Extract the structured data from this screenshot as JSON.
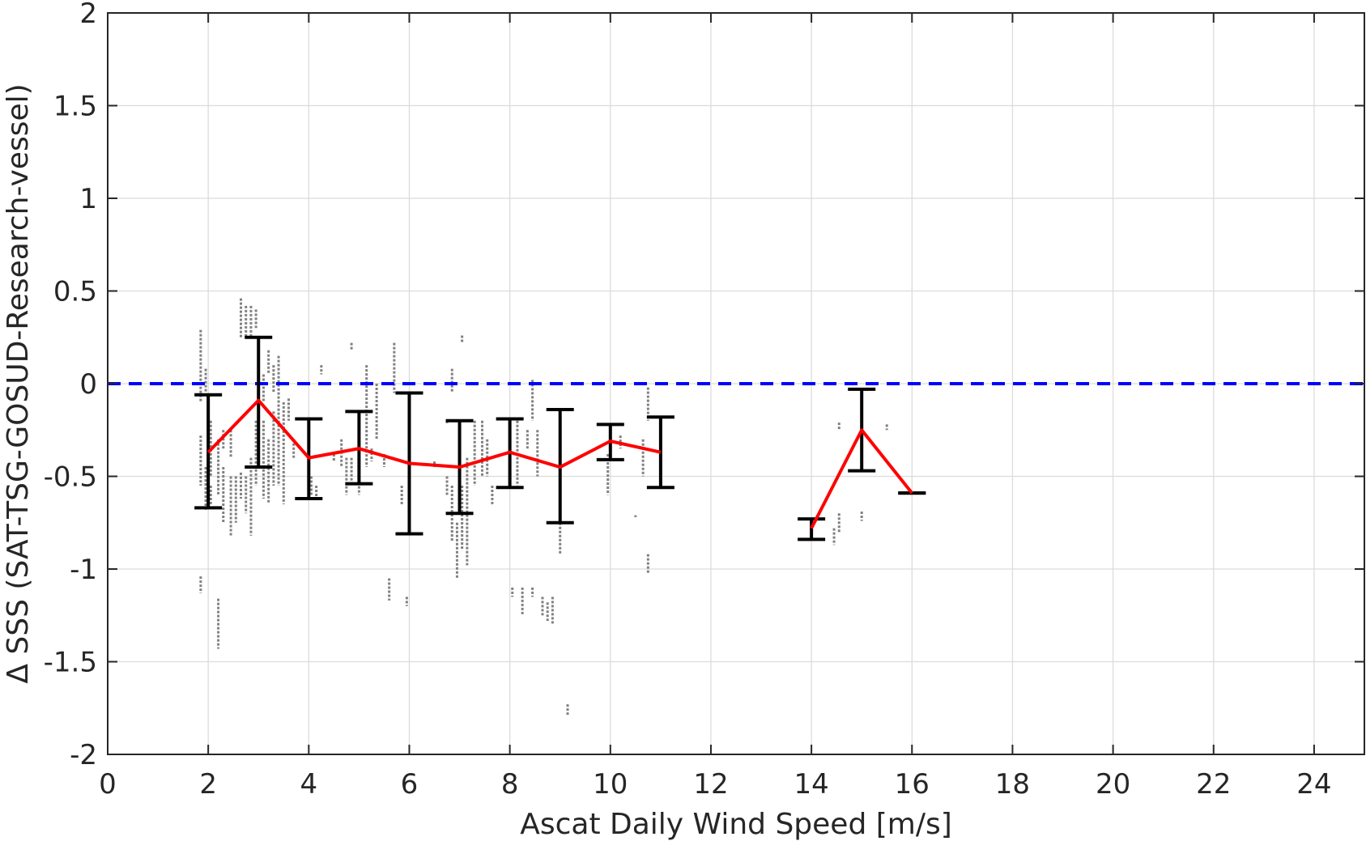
{
  "chart_data": {
    "type": "scatter",
    "title": "",
    "xlabel": "Ascat Daily Wind Speed [m/s]",
    "ylabel": "Δ SSS (SAT-TSG-GOSUD-Research-vessel)",
    "xlim": [
      0,
      25
    ],
    "ylim": [
      -2,
      2
    ],
    "xticks": [
      "0",
      "2",
      "4",
      "6",
      "8",
      "10",
      "12",
      "14",
      "16",
      "18",
      "20",
      "22",
      "24"
    ],
    "yticks": [
      "-2",
      "-1.5",
      "-1",
      "-0.5",
      "0",
      "0.5",
      "1",
      "1.5",
      "2"
    ],
    "grid": true,
    "reference_line": {
      "y": 0,
      "style": "dashed",
      "color": "#0000ff"
    },
    "mean_series": {
      "color": "#ff0000",
      "segments": [
        {
          "x": [
            2,
            3,
            4,
            5,
            6,
            7,
            8,
            9,
            10,
            11
          ],
          "y": [
            -0.37,
            -0.09,
            -0.4,
            -0.35,
            -0.43,
            -0.45,
            -0.37,
            -0.45,
            -0.31,
            -0.37
          ]
        },
        {
          "x": [
            14,
            15,
            16
          ],
          "y": [
            -0.78,
            -0.25,
            -0.59
          ]
        }
      ]
    },
    "error_bars": [
      {
        "x": 2,
        "low": -0.67,
        "high": -0.06
      },
      {
        "x": 3,
        "low": -0.45,
        "high": 0.25
      },
      {
        "x": 4,
        "low": -0.62,
        "high": -0.19
      },
      {
        "x": 5,
        "low": -0.54,
        "high": -0.15
      },
      {
        "x": 6,
        "low": -0.81,
        "high": -0.05
      },
      {
        "x": 7,
        "low": -0.7,
        "high": -0.2
      },
      {
        "x": 8,
        "low": -0.56,
        "high": -0.19
      },
      {
        "x": 9,
        "low": -0.75,
        "high": -0.14
      },
      {
        "x": 10,
        "low": -0.41,
        "high": -0.22
      },
      {
        "x": 11,
        "low": -0.56,
        "high": -0.18
      },
      {
        "x": 14,
        "low": -0.84,
        "high": -0.73
      },
      {
        "x": 15,
        "low": -0.47,
        "high": -0.03
      },
      {
        "x": 16,
        "low": -0.59,
        "high": -0.59
      }
    ],
    "scatter_color": "#808080",
    "scatter_columns": [
      {
        "x": 1.85,
        "y": [
          [
            -0.1,
            0.29
          ],
          [
            -0.55,
            -0.28
          ],
          [
            -1.13,
            -1.04
          ]
        ]
      },
      {
        "x": 1.95,
        "y": [
          [
            -0.68,
            -0.45
          ],
          [
            -0.05,
            0.08
          ]
        ]
      },
      {
        "x": 2.05,
        "y": [
          [
            -0.5,
            -0.2
          ],
          [
            -0.65,
            -0.55
          ]
        ]
      },
      {
        "x": 2.2,
        "y": [
          [
            -0.6,
            -0.3
          ],
          [
            -1.43,
            -1.16
          ]
        ]
      },
      {
        "x": 2.3,
        "y": [
          [
            -0.75,
            -0.45
          ],
          [
            -0.35,
            -0.25
          ]
        ]
      },
      {
        "x": 2.45,
        "y": [
          [
            -0.82,
            -0.5
          ],
          [
            -0.4,
            -0.25
          ]
        ]
      },
      {
        "x": 2.55,
        "y": [
          [
            -0.75,
            -0.5
          ]
        ]
      },
      {
        "x": 2.65,
        "y": [
          [
            0.25,
            0.46
          ],
          [
            -0.62,
            -0.48
          ]
        ]
      },
      {
        "x": 2.75,
        "y": [
          [
            0.25,
            0.42
          ],
          [
            -0.7,
            -0.5
          ]
        ]
      },
      {
        "x": 2.85,
        "y": [
          [
            0.25,
            0.42
          ],
          [
            -0.82,
            -0.4
          ]
        ]
      },
      {
        "x": 2.95,
        "y": [
          [
            0.3,
            0.4
          ],
          [
            -0.55,
            -0.2
          ]
        ]
      },
      {
        "x": 3.1,
        "y": [
          [
            -0.62,
            -0.2
          ],
          [
            -0.1,
            0.05
          ]
        ]
      },
      {
        "x": 3.2,
        "y": [
          [
            -0.65,
            -0.3
          ],
          [
            0.05,
            0.18
          ]
        ]
      },
      {
        "x": 3.3,
        "y": [
          [
            -0.55,
            -0.15
          ],
          [
            -0.05,
            0.1
          ]
        ]
      },
      {
        "x": 3.4,
        "y": [
          [
            -0.55,
            0.15
          ]
        ]
      },
      {
        "x": 3.5,
        "y": [
          [
            -0.65,
            -0.1
          ]
        ]
      },
      {
        "x": 3.6,
        "y": [
          [
            -0.2,
            -0.08
          ]
        ]
      },
      {
        "x": 3.7,
        "y": [
          [
            -0.4,
            -0.3
          ]
        ]
      },
      {
        "x": 4.05,
        "y": [
          [
            -0.6,
            -0.5
          ]
        ]
      },
      {
        "x": 4.15,
        "y": [
          [
            -0.62,
            -0.55
          ]
        ]
      },
      {
        "x": 4.25,
        "y": [
          [
            0.05,
            0.1
          ]
        ]
      },
      {
        "x": 4.5,
        "y": [
          [
            -0.42,
            -0.38
          ]
        ]
      },
      {
        "x": 4.65,
        "y": [
          [
            -0.45,
            -0.3
          ]
        ]
      },
      {
        "x": 4.75,
        "y": [
          [
            -0.6,
            -0.4
          ]
        ]
      },
      {
        "x": 4.85,
        "y": [
          [
            -0.55,
            -0.4
          ],
          [
            0.18,
            0.22
          ]
        ]
      },
      {
        "x": 5.0,
        "y": [
          [
            -0.6,
            -0.4
          ]
        ]
      },
      {
        "x": 5.15,
        "y": [
          [
            -0.45,
            0.1
          ]
        ]
      },
      {
        "x": 5.25,
        "y": [
          [
            -0.42,
            -0.35
          ]
        ]
      },
      {
        "x": 5.35,
        "y": [
          [
            -0.3,
            0.0
          ]
        ]
      },
      {
        "x": 5.5,
        "y": [
          [
            -0.45,
            -0.38
          ]
        ]
      },
      {
        "x": 5.6,
        "y": [
          [
            -1.17,
            -1.05
          ]
        ]
      },
      {
        "x": 5.7,
        "y": [
          [
            -0.05,
            0.22
          ]
        ]
      },
      {
        "x": 5.85,
        "y": [
          [
            -0.65,
            -0.55
          ]
        ]
      },
      {
        "x": 5.95,
        "y": [
          [
            -1.2,
            -1.15
          ]
        ]
      },
      {
        "x": 6.5,
        "y": [
          [
            -0.45,
            -0.42
          ]
        ]
      },
      {
        "x": 6.75,
        "y": [
          [
            -0.6,
            -0.5
          ],
          [
            -0.22,
            -0.2
          ]
        ]
      },
      {
        "x": 6.85,
        "y": [
          [
            -0.85,
            -0.55
          ],
          [
            -0.05,
            0.08
          ]
        ]
      },
      {
        "x": 6.95,
        "y": [
          [
            -1.05,
            -0.75
          ]
        ]
      },
      {
        "x": 7.05,
        "y": [
          [
            -0.9,
            -0.55
          ],
          [
            0.22,
            0.26
          ]
        ]
      },
      {
        "x": 7.15,
        "y": [
          [
            -0.98,
            -0.4
          ]
        ]
      },
      {
        "x": 7.3,
        "y": [
          [
            -0.55,
            -0.2
          ]
        ]
      },
      {
        "x": 7.45,
        "y": [
          [
            -0.5,
            -0.2
          ]
        ]
      },
      {
        "x": 7.55,
        "y": [
          [
            -0.5,
            -0.3
          ]
        ]
      },
      {
        "x": 7.65,
        "y": [
          [
            -0.65,
            -0.55
          ]
        ]
      },
      {
        "x": 8.05,
        "y": [
          [
            -1.15,
            -1.1
          ]
        ]
      },
      {
        "x": 8.15,
        "y": [
          [
            -0.55,
            -0.2
          ]
        ]
      },
      {
        "x": 8.25,
        "y": [
          [
            -1.25,
            -1.1
          ]
        ]
      },
      {
        "x": 8.35,
        "y": [
          [
            -0.35,
            -0.25
          ]
        ]
      },
      {
        "x": 8.45,
        "y": [
          [
            -1.15,
            -1.1
          ],
          [
            -0.2,
            0.02
          ]
        ]
      },
      {
        "x": 8.55,
        "y": [
          [
            -0.5,
            -0.25
          ]
        ]
      },
      {
        "x": 8.65,
        "y": [
          [
            -1.25,
            -1.15
          ]
        ]
      },
      {
        "x": 8.75,
        "y": [
          [
            -1.28,
            -1.18
          ]
        ]
      },
      {
        "x": 8.85,
        "y": [
          [
            -1.3,
            -1.15
          ]
        ]
      },
      {
        "x": 9.0,
        "y": [
          [
            -0.92,
            -0.75
          ]
        ]
      },
      {
        "x": 9.15,
        "y": [
          [
            -1.79,
            -1.73
          ]
        ]
      },
      {
        "x": 9.95,
        "y": [
          [
            -0.6,
            -0.38
          ]
        ]
      },
      {
        "x": 10.2,
        "y": [
          [
            -0.35,
            -0.28
          ]
        ]
      },
      {
        "x": 10.5,
        "y": [
          [
            -0.72,
            -0.71
          ]
        ]
      },
      {
        "x": 10.65,
        "y": [
          [
            -0.5,
            -0.3
          ]
        ]
      },
      {
        "x": 10.75,
        "y": [
          [
            -1.02,
            -0.92
          ],
          [
            -0.2,
            -0.02
          ]
        ]
      },
      {
        "x": 14.45,
        "y": [
          [
            -0.87,
            -0.78
          ]
        ]
      },
      {
        "x": 14.55,
        "y": [
          [
            -0.8,
            -0.7
          ]
        ]
      },
      {
        "x": 14.55,
        "y": [
          [
            -0.25,
            -0.21
          ]
        ]
      },
      {
        "x": 15.0,
        "y": [
          [
            -0.74,
            -0.69
          ]
        ]
      },
      {
        "x": 15.5,
        "y": [
          [
            -0.25,
            -0.22
          ]
        ]
      },
      {
        "x": 15.9,
        "y": [
          [
            -0.59,
            -0.58
          ]
        ]
      }
    ]
  }
}
